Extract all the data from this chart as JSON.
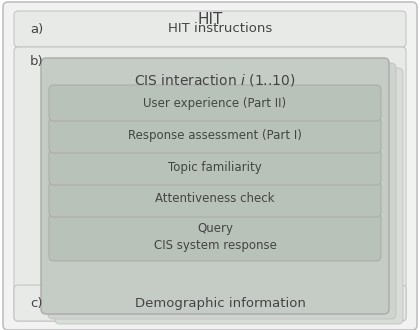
{
  "title": "HIT",
  "section_a_label": "a)",
  "section_a_text": "HIT instructions",
  "section_b_label": "b)",
  "section_c_label": "c)",
  "section_c_text": "Demographic information",
  "cis_title_plain": "CIS interaction ",
  "cis_title_italic": "i",
  "cis_title_rest": " (1..10)",
  "inner_boxes": [
    "Query\nCIS system response",
    "Attentiveness check",
    "Topic familiarity",
    "Response assessment (Part I)",
    "User experience (Part II)"
  ],
  "fig_bg": "#ffffff",
  "outer_bg": "#f2f2f2",
  "outer_border": "#c0c0c0",
  "section_a_bg": "#e8eae8",
  "section_b_bg": "#e8eae8",
  "section_c_bg": "#e8eae8",
  "stack_far_bg": "#d8ddd8",
  "stack_near_bg": "#cfd4cf",
  "cis_box_bg": "#c5ccc5",
  "cis_box_border": "#aaaaaa",
  "inner_box_bg": "#b8c2b8",
  "inner_box_border": "#aaaaaa",
  "text_color": "#444444",
  "title_fontsize": 11,
  "label_fontsize": 9.5,
  "inner_fontsize": 8.5,
  "cis_title_fontsize": 10
}
